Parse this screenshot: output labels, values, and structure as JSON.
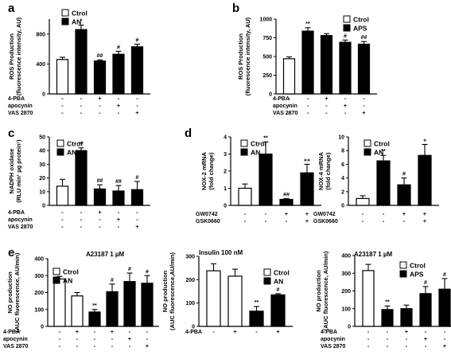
{
  "figure": {
    "colors": {
      "open": "#ffffff",
      "filled": "#000000",
      "stroke": "#000000"
    }
  },
  "chart_data": [
    {
      "id": "a",
      "type": "bar",
      "panel_label": "a",
      "title": "",
      "ylabel": [
        "ROS Production",
        "(fluorescence intensity, AU)"
      ],
      "ylim": [
        0,
        1000
      ],
      "yticks": [
        "0",
        "400",
        "800"
      ],
      "ytick_values": [
        0,
        400,
        800
      ],
      "legend": [
        {
          "name": "Ctrol",
          "fill": "open"
        },
        {
          "name": "AN",
          "fill": "filled"
        }
      ],
      "values": [
        460,
        860,
        440,
        530,
        630
      ],
      "errors": [
        30,
        60,
        15,
        40,
        35
      ],
      "fills": [
        "open",
        "filled",
        "filled",
        "filled",
        "filled"
      ],
      "significance": [
        "",
        "*",
        "##",
        "#",
        "#"
      ],
      "conditions": [
        {
          "name": "4-PBA",
          "signs": [
            "-",
            "-",
            "+",
            "-",
            "-"
          ]
        },
        {
          "name": "apocynin",
          "signs": [
            "-",
            "-",
            "-",
            "+",
            "-"
          ]
        },
        {
          "name": "VAS 2870",
          "signs": [
            "-",
            "-",
            "-",
            "-",
            "+"
          ]
        }
      ]
    },
    {
      "id": "b",
      "type": "bar",
      "panel_label": "b",
      "title": "",
      "ylabel": [
        "ROS Production",
        "(fluorescence intensity, AU)"
      ],
      "ylim": [
        0,
        1000
      ],
      "yticks": [
        "0",
        "250",
        "500",
        "750",
        "1000"
      ],
      "ytick_values": [
        0,
        250,
        500,
        750,
        1000
      ],
      "legend": [
        {
          "name": "Ctrol",
          "fill": "open"
        },
        {
          "name": "APS",
          "fill": "filled"
        }
      ],
      "values": [
        470,
        840,
        780,
        690,
        665
      ],
      "errors": [
        25,
        45,
        25,
        30,
        35
      ],
      "fills": [
        "open",
        "filled",
        "filled",
        "filled",
        "filled"
      ],
      "significance": [
        "",
        "**",
        "",
        "#",
        "##"
      ],
      "conditions": [
        {
          "name": "4-PBA",
          "signs": [
            "-",
            "-",
            "+",
            "-",
            "-"
          ]
        },
        {
          "name": "apocynin",
          "signs": [
            "-",
            "-",
            "-",
            "+",
            "-"
          ]
        },
        {
          "name": "VAS 2870",
          "signs": [
            "-",
            "-",
            "-",
            "-",
            "+"
          ]
        }
      ]
    },
    {
      "id": "c",
      "type": "bar",
      "panel_label": "c",
      "title": "",
      "ylabel": [
        "NADPH oxidase",
        "(RLU min¹ µg protein¹)"
      ],
      "ylim": [
        0,
        50
      ],
      "yticks": [
        "0",
        "10",
        "20",
        "30",
        "40",
        "50"
      ],
      "ytick_values": [
        0,
        10,
        20,
        30,
        40,
        50
      ],
      "legend": [
        {
          "name": "Ctrol",
          "fill": "open"
        },
        {
          "name": "AN",
          "fill": "filled"
        }
      ],
      "values": [
        14,
        40,
        12,
        10.5,
        11.5
      ],
      "errors": [
        5,
        2,
        3,
        4,
        6
      ],
      "fills": [
        "open",
        "filled",
        "filled",
        "filled",
        "filled"
      ],
      "significance": [
        "",
        "**",
        "##",
        "##",
        "#"
      ],
      "conditions": [
        {
          "name": "4-PBA",
          "signs": [
            "-",
            "-",
            "+",
            "-",
            "-"
          ]
        },
        {
          "name": "apocynin",
          "signs": [
            "-",
            "-",
            "-",
            "+",
            "-"
          ]
        },
        {
          "name": "VAS 2870",
          "signs": [
            "-",
            "-",
            "-",
            "-",
            "+"
          ]
        }
      ]
    },
    {
      "id": "d1",
      "type": "bar",
      "panel_label": "d",
      "title": "",
      "ylabel": [
        "NOX-2 mRNA",
        "(fold change)"
      ],
      "ylim": [
        0,
        4
      ],
      "yticks": [
        "0",
        "1",
        "2",
        "3",
        "4"
      ],
      "ytick_values": [
        0,
        1,
        2,
        3,
        4
      ],
      "legend": [
        {
          "name": "Ctrol",
          "fill": "open"
        },
        {
          "name": "AN",
          "fill": "filled"
        }
      ],
      "values": [
        1.0,
        3.0,
        0.35,
        1.9
      ],
      "errors": [
        0.25,
        0.7,
        0.05,
        0.5
      ],
      "fills": [
        "open",
        "filled",
        "filled",
        "filled"
      ],
      "significance": [
        "",
        "**",
        "##",
        "++"
      ],
      "conditions": [
        {
          "name": "GW0742",
          "signs": [
            "-",
            "-",
            "+",
            "+"
          ]
        },
        {
          "name": "GSK0660",
          "signs": [
            "-",
            "-",
            "-",
            "+"
          ]
        }
      ]
    },
    {
      "id": "d2",
      "type": "bar",
      "panel_label": "",
      "title": "",
      "ylabel": [
        "NOX-4 mRNA",
        "(fold change)"
      ],
      "ylim": [
        0,
        10
      ],
      "yticks": [
        "0",
        "2",
        "4",
        "6",
        "8",
        "10"
      ],
      "ytick_values": [
        0,
        2,
        4,
        6,
        8,
        10
      ],
      "legend": [
        {
          "name": "Ctrol",
          "fill": "open"
        },
        {
          "name": "AN",
          "fill": "filled"
        }
      ],
      "values": [
        1.0,
        6.5,
        3.0,
        7.3
      ],
      "errors": [
        0.4,
        0.8,
        1.0,
        1.6
      ],
      "fills": [
        "open",
        "filled",
        "filled",
        "filled"
      ],
      "significance": [
        "",
        "**",
        "#",
        "+"
      ],
      "conditions": [
        {
          "name": "GW0742",
          "signs": [
            "-",
            "-",
            "+",
            "+"
          ]
        },
        {
          "name": "GSK0660",
          "signs": [
            "-",
            "-",
            "-",
            "+"
          ]
        }
      ]
    },
    {
      "id": "e1",
      "type": "bar",
      "panel_label": "e",
      "title": "A23187  1 µM",
      "ylabel": [
        "NO production",
        "(AUC fluorescence, AU/min)"
      ],
      "ylim": [
        0,
        400
      ],
      "yticks": [
        "0",
        "100",
        "200",
        "300",
        "400"
      ],
      "ytick_values": [
        0,
        100,
        200,
        300,
        400
      ],
      "legend": [
        {
          "name": "Ctrol",
          "fill": "open"
        },
        {
          "name": "AN",
          "fill": "filled"
        }
      ],
      "values": [
        280,
        180,
        85,
        205,
        265,
        255
      ],
      "errors": [
        15,
        20,
        15,
        45,
        50,
        45
      ],
      "fills": [
        "open",
        "open",
        "filled",
        "filled",
        "filled",
        "filled"
      ],
      "significance": [
        "",
        "",
        "**",
        "#",
        "#",
        "#"
      ],
      "conditions": [
        {
          "name": "4-PBA",
          "signs": [
            "-",
            "+",
            "-",
            "+",
            "-",
            "-"
          ]
        },
        {
          "name": "apocynin",
          "signs": [
            "-",
            "-",
            "-",
            "-",
            "+",
            "-"
          ]
        },
        {
          "name": "VAS 2870",
          "signs": [
            "-",
            "-",
            "-",
            "-",
            "-",
            "+"
          ]
        }
      ]
    },
    {
      "id": "e2",
      "type": "bar",
      "panel_label": "",
      "title": "Insulin 100 nM",
      "ylabel": [
        "NO production",
        "(AUC fluorescence,AU/min)"
      ],
      "ylim": [
        0,
        300
      ],
      "yticks": [
        "0",
        "100",
        "200",
        "300"
      ],
      "ytick_values": [
        0,
        100,
        200,
        300
      ],
      "legend": [
        {
          "name": "Ctrol",
          "fill": "open"
        },
        {
          "name": "AN",
          "fill": "filled"
        }
      ],
      "values": [
        238,
        215,
        65,
        135
      ],
      "errors": [
        30,
        30,
        20,
        5
      ],
      "fills": [
        "open",
        "open",
        "filled",
        "filled"
      ],
      "significance": [
        "",
        "",
        "**",
        "#"
      ],
      "conditions": [
        {
          "name": "4-PBA",
          "signs": [
            "-",
            "+",
            "-",
            "+"
          ]
        }
      ]
    },
    {
      "id": "e3",
      "type": "bar",
      "panel_label": "",
      "title": "A23187  1 µM",
      "ylabel": [
        "NO production",
        "(AUC fluorescence, AU/min)"
      ],
      "ylim": [
        0,
        400
      ],
      "yticks": [
        "0",
        "100",
        "200",
        "300",
        "400"
      ],
      "ytick_values": [
        0,
        100,
        200,
        300,
        400
      ],
      "legend": [
        {
          "name": "Ctrol",
          "fill": "open"
        },
        {
          "name": "APS",
          "fill": "filled"
        }
      ],
      "values": [
        315,
        95,
        100,
        185,
        210
      ],
      "errors": [
        35,
        20,
        20,
        40,
        60
      ],
      "fills": [
        "open",
        "filled",
        "filled",
        "filled",
        "filled"
      ],
      "significance": [
        "",
        "**",
        "",
        "#",
        "#"
      ],
      "conditions": [
        {
          "name": "4-PBA",
          "signs": [
            "-",
            "-",
            "+",
            "-",
            "-"
          ]
        },
        {
          "name": "apocynin",
          "signs": [
            "-",
            "-",
            "-",
            "+",
            "-"
          ]
        },
        {
          "name": "VAS 2870",
          "signs": [
            "-",
            "-",
            "-",
            "-",
            "+"
          ]
        }
      ]
    }
  ]
}
